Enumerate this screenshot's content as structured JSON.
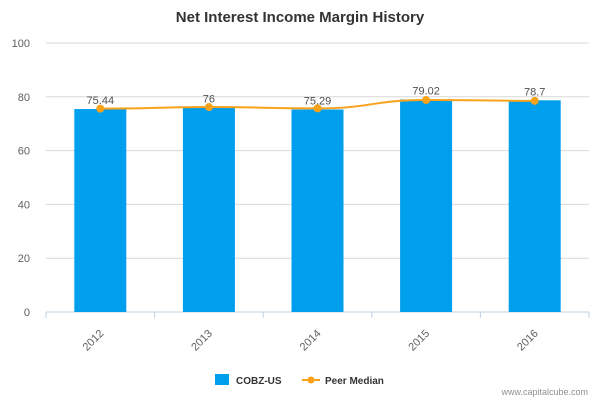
{
  "chart_data": {
    "type": "bar",
    "title": "Net Interest Income Margin History",
    "categories": [
      "2012",
      "2013",
      "2014",
      "2015",
      "2016"
    ],
    "series": [
      {
        "name": "COBZ-US",
        "kind": "bar",
        "color": "#009FEE",
        "values": [
          75.44,
          76,
          75.29,
          79.02,
          78.7
        ]
      },
      {
        "name": "Peer Median",
        "kind": "line",
        "color": "#F8A21C",
        "values": [
          75.6,
          76.2,
          75.7,
          78.8,
          78.5
        ]
      }
    ],
    "data_labels": [
      "75.44",
      "76",
      "75.29",
      "79.02",
      "78.7"
    ],
    "ylim": [
      0,
      100
    ],
    "yticks": [
      "0",
      "20",
      "40",
      "60",
      "80",
      "100"
    ],
    "xlabel": "",
    "ylabel": ""
  },
  "credit": "www.capitalcube.com"
}
